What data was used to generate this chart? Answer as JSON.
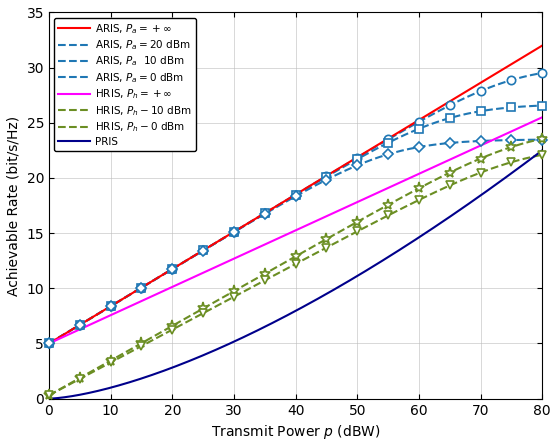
{
  "x_range": [
    0,
    80
  ],
  "y_range": [
    0,
    35
  ],
  "x_ticks": [
    0,
    10,
    20,
    30,
    40,
    50,
    60,
    70,
    80
  ],
  "y_ticks": [
    0,
    5,
    10,
    15,
    20,
    25,
    30,
    35
  ],
  "xlabel": "Transmit Power $p$ (dBW)",
  "ylabel": "Achievable Rate (bit/s/Hz)",
  "c_red": "#FF0000",
  "c_blue": "#1F77B4",
  "c_magenta": "#FF00FF",
  "c_olive": "#6B8E23",
  "c_navy": "#00008B",
  "aris_inf_p0": 5.0,
  "aris_inf_p80": 32.0,
  "hris_inf_p0": 5.0,
  "hris_inf_p80": 25.5,
  "sat_aris_20": 30.2,
  "sat_aris_10": 26.7,
  "sat_aris_0": 23.5,
  "sat_hris_10": 24.5,
  "sat_hris_0": 23.0,
  "pris_a": 4.2,
  "pris_b": 0.055,
  "marker_step": 5,
  "lw": 1.5,
  "ms": 6
}
